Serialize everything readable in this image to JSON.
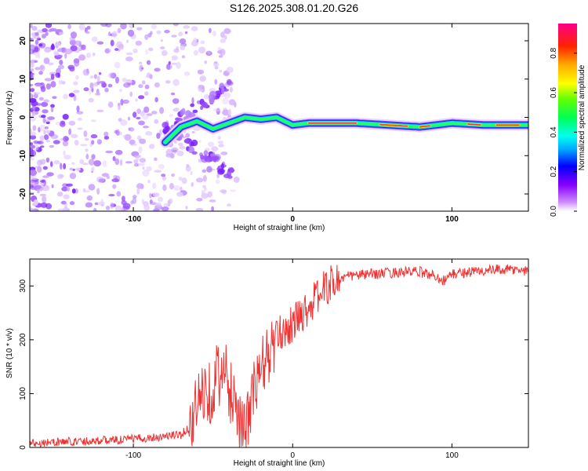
{
  "title": "S126.2025.308.01.20.G26",
  "chart_data": [
    {
      "type": "heatmap",
      "name": "spectrogram",
      "xlabel": "Height of straight line (km)",
      "ylabel": "Frequency (Hz)",
      "xlim": [
        -165,
        148
      ],
      "ylim": [
        -24.5,
        24.5
      ],
      "xticks": [
        -100,
        0,
        100
      ],
      "yticks": [
        -20,
        -10,
        0,
        10,
        20
      ],
      "colorbar": {
        "label": "Normalized spectral amplitude",
        "range": [
          0,
          0.95
        ],
        "ticks": [
          0.0,
          0.2,
          0.4,
          0.6,
          0.8
        ]
      },
      "ridge": {
        "x": [
          -80,
          -70,
          -60,
          -50,
          -40,
          -30,
          -20,
          -10,
          0,
          10,
          20,
          40,
          60,
          80,
          100,
          120,
          148
        ],
        "y": [
          -6.5,
          -2.5,
          -1,
          -3,
          -1.5,
          0,
          -0.5,
          0,
          -2,
          -1.5,
          -1.5,
          -1.5,
          -2,
          -2.5,
          -1.5,
          -2,
          -2
        ]
      }
    },
    {
      "type": "line",
      "name": "snr",
      "xlabel": "Height of straight line (km)",
      "ylabel": "SNR (10 * v/v)",
      "xlim": [
        -165,
        148
      ],
      "ylim": [
        0,
        350
      ],
      "xticks": [
        -100,
        0,
        100
      ],
      "yticks": [
        0,
        100,
        200,
        300
      ],
      "series": [
        {
          "name": "SNR",
          "color": "#ee3333",
          "x": [
            -165,
            -150,
            -130,
            -110,
            -90,
            -70,
            -64,
            -60,
            -55,
            -50,
            -47,
            -45,
            -42,
            -40,
            -38,
            -35,
            -32,
            -30,
            -28,
            -25,
            -22,
            -20,
            -18,
            -15,
            -12,
            -10,
            -8,
            -5,
            -2,
            0,
            3,
            6,
            10,
            14,
            18,
            22,
            26,
            30,
            35,
            40,
            50,
            60,
            70,
            80,
            90,
            95,
            100,
            110,
            120,
            130,
            140,
            148
          ],
          "y": [
            8,
            10,
            12,
            14,
            18,
            24,
            40,
            80,
            110,
            100,
            150,
            120,
            140,
            90,
            110,
            80,
            40,
            20,
            60,
            100,
            120,
            140,
            160,
            170,
            190,
            200,
            210,
            220,
            225,
            230,
            240,
            250,
            260,
            275,
            290,
            300,
            308,
            314,
            318,
            320,
            322,
            324,
            326,
            326,
            318,
            310,
            322,
            326,
            328,
            330,
            330,
            328
          ]
        }
      ]
    }
  ]
}
